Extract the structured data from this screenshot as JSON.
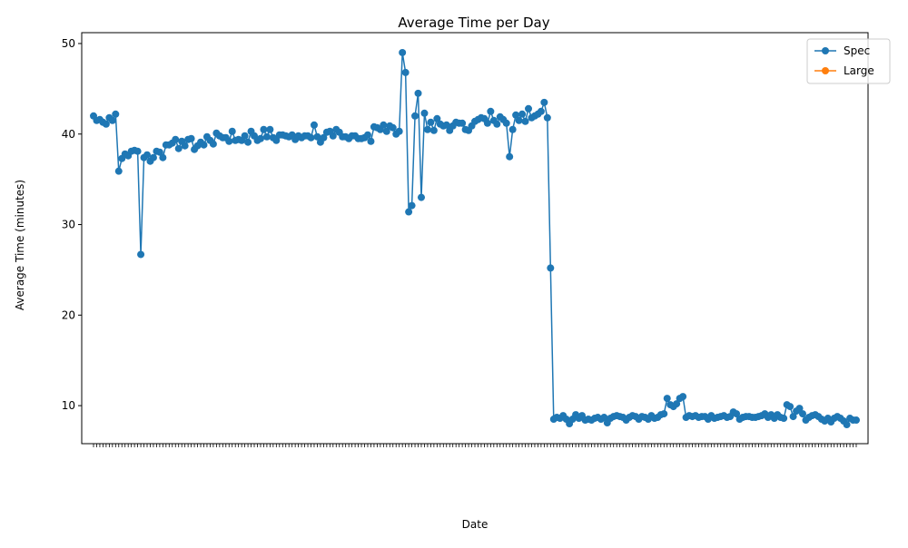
{
  "chart_data": {
    "type": "line",
    "title": "Average Time per Day",
    "xlabel": "Date",
    "ylabel": "Average Time (minutes)",
    "ylim": [
      5.8,
      51.2
    ],
    "yticks": [
      10,
      20,
      30,
      40,
      50
    ],
    "grid": false,
    "legend_position": "top-right",
    "series": [
      {
        "name": "Spec",
        "color": "#1f77b4",
        "marker": "circle",
        "values": [
          42.0,
          41.5,
          41.6,
          41.3,
          41.1,
          41.8,
          41.5,
          42.2,
          35.9,
          37.3,
          37.8,
          37.6,
          38.1,
          38.2,
          38.1,
          26.7,
          37.4,
          37.7,
          37.0,
          37.4,
          38.1,
          38.0,
          37.4,
          38.8,
          38.8,
          39.0,
          39.4,
          38.4,
          39.2,
          38.7,
          39.4,
          39.5,
          38.3,
          38.7,
          39.1,
          38.8,
          39.7,
          39.3,
          38.9,
          40.1,
          39.8,
          39.6,
          39.6,
          39.2,
          40.3,
          39.3,
          39.4,
          39.3,
          39.8,
          39.1,
          40.3,
          39.8,
          39.3,
          39.5,
          40.5,
          39.7,
          40.5,
          39.6,
          39.3,
          39.9,
          39.9,
          39.8,
          39.7,
          39.9,
          39.4,
          39.8,
          39.6,
          39.8,
          39.8,
          39.6,
          41.0,
          39.7,
          39.1,
          39.6,
          40.2,
          40.3,
          39.8,
          40.5,
          40.2,
          39.7,
          39.7,
          39.5,
          39.8,
          39.8,
          39.5,
          39.5,
          39.6,
          39.9,
          39.2,
          40.8,
          40.7,
          40.5,
          41.0,
          40.3,
          40.9,
          40.7,
          40.0,
          40.3,
          49.0,
          46.8,
          31.4,
          32.1,
          42.0,
          44.5,
          33.0,
          42.3,
          40.5,
          41.3,
          40.4,
          41.7,
          41.1,
          40.9,
          41.0,
          40.4,
          40.9,
          41.3,
          41.2,
          41.2,
          40.5,
          40.4,
          40.9,
          41.4,
          41.6,
          41.8,
          41.7,
          41.2,
          42.5,
          41.5,
          41.1,
          41.9,
          41.6,
          41.2,
          37.5,
          40.5,
          42.1,
          41.5,
          42.2,
          41.4,
          42.8,
          41.8,
          42.0,
          42.2,
          42.5,
          43.5,
          41.8,
          25.2,
          8.5,
          8.7,
          8.6,
          8.9,
          8.5,
          8.0,
          8.5,
          9.0,
          8.6,
          8.9,
          8.4,
          8.5,
          8.4,
          8.6,
          8.7,
          8.5,
          8.7,
          8.1,
          8.6,
          8.8,
          8.9,
          8.8,
          8.7,
          8.4,
          8.7,
          8.9,
          8.8,
          8.5,
          8.8,
          8.7,
          8.5,
          8.9,
          8.6,
          8.7,
          9.0,
          9.1,
          10.8,
          10.1,
          9.9,
          10.2,
          10.8,
          11.0,
          8.7,
          8.9,
          8.8,
          8.9,
          8.7,
          8.8,
          8.8,
          8.5,
          8.9,
          8.6,
          8.7,
          8.8,
          8.9,
          8.7,
          8.8,
          9.3,
          9.1,
          8.5,
          8.7,
          8.8,
          8.8,
          8.7,
          8.7,
          8.8,
          8.9,
          9.1,
          8.7,
          9.0,
          8.6,
          9.0,
          8.7,
          8.6,
          10.1,
          9.9,
          8.8,
          9.4,
          9.7,
          9.1,
          8.4,
          8.7,
          8.9,
          9.0,
          8.8,
          8.5,
          8.3,
          8.6,
          8.2,
          8.6,
          8.8,
          8.6,
          8.3,
          7.9,
          8.6,
          8.4,
          8.4
        ]
      },
      {
        "name": "Large",
        "color": "#ff7f0e",
        "marker": "circle",
        "values": []
      }
    ]
  }
}
